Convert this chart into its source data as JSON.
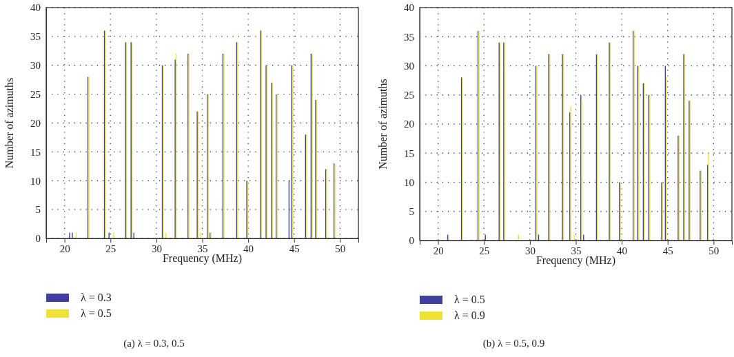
{
  "chart_data": [
    {
      "type": "bar",
      "xlabel": "Frequency (MHz)",
      "ylabel": "Number of azimuths",
      "annotations": [
        "(a) λ = 0.3, 0.5"
      ],
      "x": [
        20.6,
        20.9,
        21.2,
        22.6,
        24.4,
        24.9,
        25.3,
        26.7,
        27.3,
        27.6,
        30.7,
        31.0,
        32.1,
        33.5,
        34.5,
        34.8,
        35.6,
        35.9,
        37.3,
        38.8,
        39.9,
        41.4,
        42.0,
        42.6,
        43.1,
        44.5,
        44.8,
        46.3,
        46.9,
        47.4,
        48.5,
        49.4
      ],
      "series": [
        {
          "name": "λ = 0.3",
          "color": "#3f3f9f",
          "values": [
            1,
            1,
            0,
            28,
            36,
            1,
            0,
            34,
            34,
            1,
            30,
            0,
            31,
            32,
            22,
            0,
            25,
            1,
            32,
            34,
            10,
            36,
            30,
            27,
            25,
            10,
            30,
            18,
            32,
            24,
            12,
            13
          ]
        },
        {
          "name": "λ = 0.5",
          "color": "#eee232",
          "values": [
            0,
            0,
            1,
            28,
            36,
            0,
            1,
            34,
            34,
            0,
            30,
            1,
            32,
            32,
            22,
            1,
            25,
            1,
            32,
            34,
            10,
            36,
            30,
            27,
            25,
            0,
            30,
            18,
            32,
            24,
            12,
            13
          ]
        }
      ],
      "xlim": [
        18,
        52
      ],
      "xticks": [
        20,
        25,
        30,
        35,
        40,
        45,
        50
      ],
      "ylim": [
        0,
        40
      ],
      "yticks": [
        0,
        5,
        10,
        15,
        20,
        25,
        30,
        35,
        40
      ],
      "grid": true,
      "legend": "bottom left"
    },
    {
      "type": "bar",
      "xlabel": "Frequency (MHz)",
      "ylabel": "Number of azimuths",
      "annotations": [
        "(b) λ = 0.5, 0.9"
      ],
      "x": [
        21.1,
        22.6,
        24.4,
        25.2,
        26.7,
        27.2,
        28.7,
        30.7,
        31.0,
        32.1,
        33.6,
        34.4,
        34.8,
        35.6,
        35.9,
        37.3,
        38.7,
        39.8,
        41.3,
        41.8,
        42.4,
        43.0,
        44.4,
        44.8,
        46.2,
        46.8,
        47.4,
        48.6,
        49.4
      ],
      "series": [
        {
          "name": "λ = 0.5",
          "color": "#3f3f9f",
          "values": [
            1,
            28,
            36,
            1,
            34,
            34,
            0,
            30,
            1,
            32,
            32,
            22,
            0,
            25,
            1,
            32,
            34,
            10,
            36,
            30,
            27,
            25,
            10,
            30,
            18,
            32,
            24,
            12,
            13
          ]
        },
        {
          "name": "λ = 0.9",
          "color": "#eee232",
          "values": [
            0,
            28,
            36,
            0,
            34,
            34,
            1,
            30,
            0,
            32,
            32,
            23,
            1,
            24,
            0,
            32,
            34,
            10,
            36,
            30,
            27,
            25,
            10,
            28,
            18,
            32,
            24,
            12,
            15
          ]
        }
      ],
      "xlim": [
        18,
        52
      ],
      "xticks": [
        20,
        25,
        30,
        35,
        40,
        45,
        50
      ],
      "ylim": [
        0,
        40
      ],
      "yticks": [
        0,
        5,
        10,
        15,
        20,
        25,
        30,
        35,
        40
      ],
      "grid": true,
      "legend": "bottom left"
    }
  ]
}
